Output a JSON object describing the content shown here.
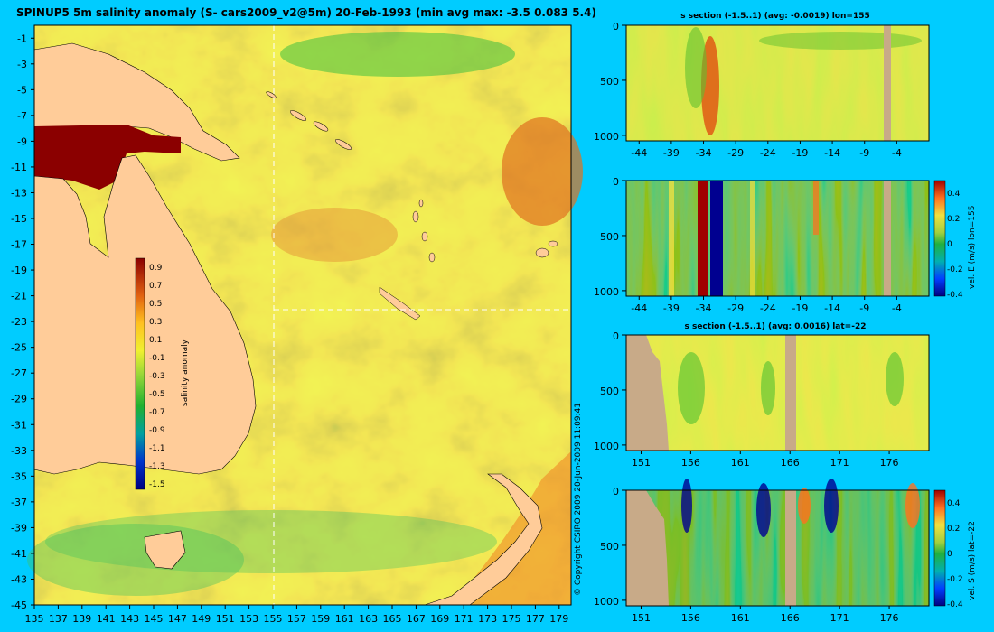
{
  "map": {
    "title": "SPINUP5 5m salinity anomaly (S- cars2009_v2@5m) 20-Feb-1993 (min avg max: -3.5 0.083 5.4)",
    "x_ticks": [
      "135",
      "137",
      "139",
      "141",
      "143",
      "145",
      "147",
      "149",
      "151",
      "153",
      "155",
      "157",
      "159",
      "161",
      "163",
      "165",
      "167",
      "169",
      "171",
      "173",
      "175",
      "177",
      "179"
    ],
    "y_ticks": [
      "-1",
      "-3",
      "-5",
      "-7",
      "-9",
      "-11",
      "-13",
      "-15",
      "-17",
      "-19",
      "-21",
      "-23",
      "-25",
      "-27",
      "-29",
      "-31",
      "-33",
      "-35",
      "-37",
      "-39",
      "-41",
      "-43",
      "-45"
    ],
    "colorbar_label": "salinity anomaly",
    "colorbar_ticks": [
      "0.9",
      "0.7",
      "0.5",
      "0.3",
      "0.1",
      "-0.1",
      "-0.3",
      "-0.5",
      "-0.7",
      "-0.9",
      "-1.1",
      "-1.3",
      "-1.5"
    ],
    "section_lines": {
      "lon": 155,
      "lat": -22
    }
  },
  "panels": [
    {
      "title": "s section (-1.5..1) (avg: -0.0019) lon=155",
      "y_ticks": [
        "0",
        "500",
        "1000"
      ],
      "x_ticks": [
        "-44",
        "-39",
        "-34",
        "-29",
        "-24",
        "-19",
        "-14",
        "-9",
        "-4"
      ]
    },
    {
      "title": "",
      "y_ticks": [
        "0",
        "500",
        "1000"
      ],
      "x_ticks": [
        "-44",
        "-39",
        "-34",
        "-29",
        "-24",
        "-19",
        "-14",
        "-9",
        "-4"
      ],
      "colorbar_label": "vel. E (m/s) lon=155",
      "colorbar_ticks": [
        "0.4",
        "0.2",
        "0",
        "-0.2",
        "-0.4"
      ]
    },
    {
      "title": "s section (-1.5..1) (avg: 0.0016) lat=-22",
      "y_ticks": [
        "0",
        "500",
        "1000"
      ],
      "x_ticks": [
        "151",
        "156",
        "161",
        "166",
        "171",
        "176"
      ]
    },
    {
      "title": "",
      "y_ticks": [
        "0",
        "500",
        "1000"
      ],
      "x_ticks": [
        "151",
        "156",
        "161",
        "166",
        "171",
        "176"
      ],
      "colorbar_label": "vel. S (m/s) lat=-22",
      "colorbar_ticks": [
        "0.4",
        "0.2",
        "0",
        "-0.2",
        "-0.4"
      ]
    }
  ],
  "copyright": "© Copyright CSIRO 2009   20-Jun-2009 11:09:41",
  "colors": {
    "background": "#00ccff",
    "land": "#ffcc99",
    "section_land": "#c8aa88"
  },
  "chart_data": [
    {
      "type": "heatmap",
      "title": "SPINUP5 5m salinity anomaly (S- cars2009_v2@5m) 20-Feb-1993",
      "xlabel": "",
      "ylabel": "",
      "xlim": [
        135,
        180
      ],
      "ylim": [
        -45,
        0
      ],
      "color_range": [
        -1.5,
        1
      ],
      "colorbar_label": "salinity anomaly",
      "stats": {
        "min": -3.5,
        "avg": 0.083,
        "max": 5.4
      }
    },
    {
      "type": "heatmap",
      "title": "s section (-1.5..1) (avg: -0.0019) lon=155",
      "xlim": [
        -46,
        1
      ],
      "ylim": [
        1050,
        0
      ],
      "color_range": [
        -1.5,
        1
      ],
      "avg": -0.0019
    },
    {
      "type": "heatmap",
      "title": "",
      "xlim": [
        -46,
        1
      ],
      "ylim": [
        1050,
        0
      ],
      "color_range": [
        -0.4,
        0.5
      ],
      "colorbar_label": "vel. E (m/s) lon=155"
    },
    {
      "type": "heatmap",
      "title": "s section (-1.5..1) (avg: 0.0016) lat=-22",
      "xlim": [
        149.5,
        180
      ],
      "ylim": [
        1050,
        0
      ],
      "color_range": [
        -1.5,
        1
      ],
      "avg": 0.0016
    },
    {
      "type": "heatmap",
      "title": "",
      "xlim": [
        149.5,
        180
      ],
      "ylim": [
        1050,
        0
      ],
      "color_range": [
        -0.4,
        0.5
      ],
      "colorbar_label": "vel. S (m/s) lat=-22"
    }
  ]
}
